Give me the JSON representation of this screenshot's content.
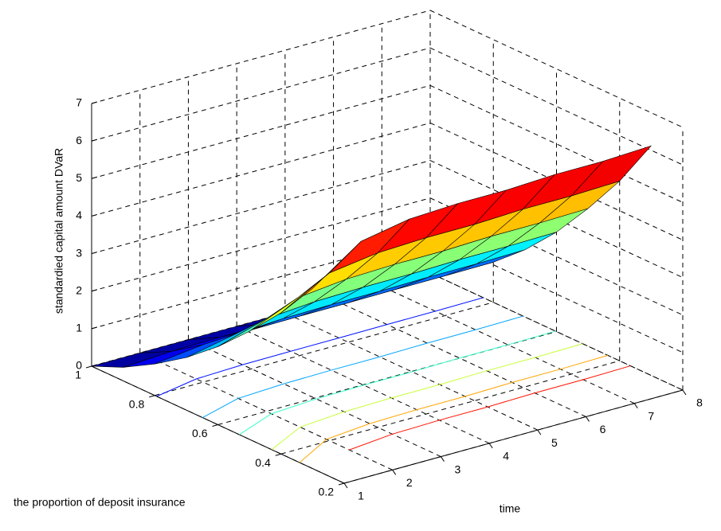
{
  "chart_data": {
    "type": "surface",
    "x_label": "time",
    "y_label": "the proportion of deposit insurance",
    "z_label": "standardied capital amount DVaR",
    "x": [
      1,
      2,
      3,
      4,
      5,
      6,
      7,
      8
    ],
    "y": [
      0.3,
      0.4,
      0.5,
      0.6,
      0.7,
      0.8,
      0.9,
      1
    ],
    "z": [
      [
        4.8,
        5.7,
        5.94,
        6.0,
        6.0,
        6.06,
        6.06,
        6.12
      ],
      [
        3.76,
        4.47,
        4.65,
        4.7,
        4.7,
        4.75,
        4.75,
        4.79
      ],
      [
        2.88,
        3.42,
        3.56,
        3.6,
        3.6,
        3.64,
        3.64,
        3.67
      ],
      [
        2.08,
        2.47,
        2.57,
        2.6,
        2.6,
        2.63,
        2.63,
        2.65
      ],
      [
        1.4,
        1.66,
        1.73,
        1.75,
        1.75,
        1.77,
        1.77,
        1.79
      ],
      [
        0.84,
        1.0,
        1.04,
        1.05,
        1.05,
        1.06,
        1.06,
        1.07
      ],
      [
        0.36,
        0.43,
        0.45,
        0.45,
        0.45,
        0.45,
        0.45,
        0.46
      ],
      [
        0,
        0,
        0,
        0,
        0,
        0,
        0,
        0
      ]
    ],
    "xlim": [
      1,
      8
    ],
    "ylim": [
      0.2,
      1
    ],
    "zlim": [
      0,
      7
    ],
    "xticks": [
      1,
      2,
      3,
      4,
      5,
      6,
      7,
      8
    ],
    "yticks": [
      0.2,
      0.4,
      0.6,
      0.8,
      1
    ],
    "zticks": [
      0,
      1,
      2,
      3,
      4,
      5,
      6,
      7
    ],
    "grid": true,
    "colormap": "jet",
    "contour": true
  }
}
